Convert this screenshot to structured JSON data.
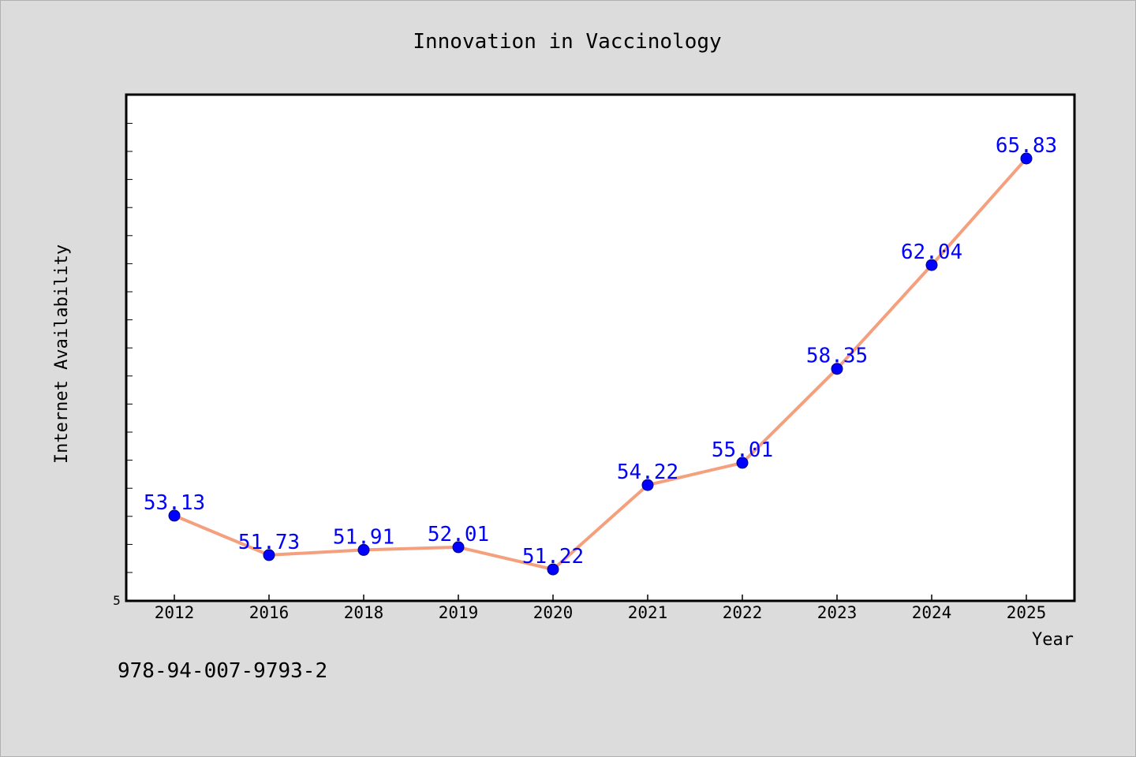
{
  "footer": {
    "code": "978-94-007-9793-2"
  },
  "chart_data": {
    "type": "line",
    "title": "Innovation in Vaccinology",
    "xlabel": "Year",
    "ylabel": "Internet Availability",
    "categories": [
      "2012",
      "2016",
      "2018",
      "2019",
      "2020",
      "2021",
      "2022",
      "2023",
      "2024",
      "2025"
    ],
    "series": [
      {
        "values": [
          53.13,
          51.73,
          51.91,
          52.01,
          51.22,
          54.22,
          55.01,
          58.35,
          62.04,
          65.83
        ]
      }
    ],
    "y_tick_labels": [
      "5"
    ],
    "ylim": [
      50.1,
      68.1
    ],
    "grid": false,
    "legend": "none",
    "colors": {
      "line": "#f4a07e",
      "marker": "#0000ff",
      "marker_edge": "#000080",
      "label": "#0000ff",
      "background": "#dcdcdc",
      "plot_background": "#ffffff"
    }
  }
}
